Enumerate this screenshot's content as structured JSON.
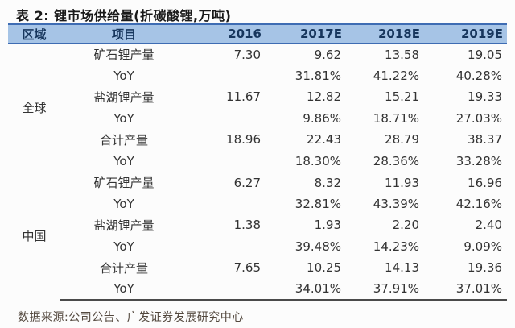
{
  "title": "表 2: 锂市场供给量(折碳酸锂,万吨)",
  "source": "数据来源:公司公告、广发证券发展研究中心",
  "colors": {
    "header_fill": "#a6c4e6",
    "header_border": "#3e6cb3",
    "header_text": "#17365d",
    "body_text": "#333333",
    "section_divider": "#4d4d4d",
    "source_text": "#53483e"
  },
  "chart_data": {
    "type": "table",
    "title": "锂市场供给量(折碳酸锂,万吨)",
    "unit": "万吨(折碳酸锂)",
    "columns": [
      "区域",
      "项目",
      "2016",
      "2017E",
      "2018E",
      "2019E"
    ],
    "sections": [
      {
        "region": "全球",
        "rows": [
          {
            "item": "矿石锂产量",
            "values": [
              "7.30",
              "9.62",
              "13.58",
              "19.05"
            ]
          },
          {
            "item": "YoY",
            "values": [
              "",
              "31.81%",
              "41.22%",
              "40.28%"
            ]
          },
          {
            "item": "盐湖锂产量",
            "values": [
              "11.67",
              "12.82",
              "15.21",
              "19.33"
            ]
          },
          {
            "item": "YoY",
            "values": [
              "",
              "9.86%",
              "18.71%",
              "27.03%"
            ]
          },
          {
            "item": "合计产量",
            "values": [
              "18.96",
              "22.43",
              "28.79",
              "38.37"
            ]
          },
          {
            "item": "YoY",
            "values": [
              "",
              "18.30%",
              "28.36%",
              "33.28%"
            ]
          }
        ]
      },
      {
        "region": "中国",
        "rows": [
          {
            "item": "矿石锂产量",
            "values": [
              "6.27",
              "8.32",
              "11.93",
              "16.96"
            ]
          },
          {
            "item": "YoY",
            "values": [
              "",
              "32.81%",
              "43.39%",
              "42.16%"
            ]
          },
          {
            "item": "盐湖锂产量",
            "values": [
              "1.38",
              "1.93",
              "2.20",
              "2.40"
            ]
          },
          {
            "item": "YoY",
            "values": [
              "",
              "39.48%",
              "14.23%",
              "9.09%"
            ]
          },
          {
            "item": "合计产量",
            "values": [
              "7.65",
              "10.25",
              "14.13",
              "19.36"
            ]
          },
          {
            "item": "YoY",
            "values": [
              "",
              "34.01%",
              "37.91%",
              "37.01%"
            ]
          }
        ]
      }
    ]
  }
}
